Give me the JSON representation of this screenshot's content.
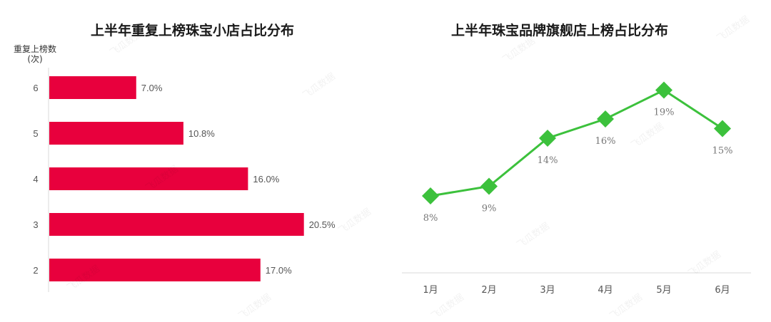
{
  "watermark": "飞瓜数据",
  "chart_data": [
    {
      "type": "bar",
      "orientation": "horizontal",
      "title": "上半年重复上榜珠宝小店占比分布",
      "ylabel_line1": "重复上榜数",
      "ylabel_line2": "(次)",
      "categories": [
        "6",
        "5",
        "4",
        "3",
        "2"
      ],
      "values": [
        7.0,
        10.8,
        16.0,
        20.5,
        17.0
      ],
      "value_labels": [
        "7.0%",
        "10.8%",
        "16.0%",
        "20.5%",
        "17.0%"
      ],
      "xlim": [
        0,
        25
      ],
      "color": "#e8003d"
    },
    {
      "type": "line",
      "title": "上半年珠宝品牌旗舰店上榜占比分布",
      "categories": [
        "1月",
        "2月",
        "3月",
        "4月",
        "5月",
        "6月"
      ],
      "values": [
        8,
        9,
        14,
        16,
        19,
        15
      ],
      "value_labels": [
        "8%",
        "9%",
        "14%",
        "16%",
        "19%",
        "15%"
      ],
      "ylim": [
        0,
        25
      ],
      "color": "#3cc13c"
    }
  ]
}
